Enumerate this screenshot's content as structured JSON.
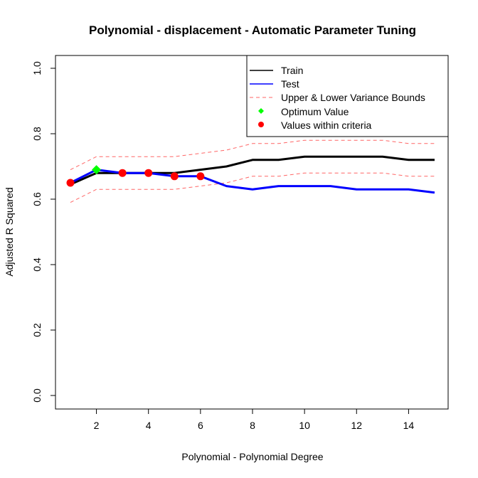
{
  "chart_data": {
    "type": "line",
    "title": "Polynomial - displacement - Automatic Parameter Tuning",
    "xlabel": "Polynomial - Polynomial Degree",
    "ylabel": "Adjusted R Squared",
    "xlim": [
      1,
      15
    ],
    "ylim": [
      0,
      1
    ],
    "x_ticks": [
      2,
      4,
      6,
      8,
      10,
      12,
      14
    ],
    "y_ticks": [
      0.0,
      0.2,
      0.4,
      0.6,
      0.8,
      1.0
    ],
    "y_tick_labels": [
      "0.0",
      "0.2",
      "0.4",
      "0.6",
      "0.8",
      "1.0"
    ],
    "x": [
      1,
      2,
      3,
      4,
      5,
      6,
      7,
      8,
      9,
      10,
      11,
      12,
      13,
      14,
      15
    ],
    "series": [
      {
        "name": "Train",
        "color": "#000000",
        "style": "solid",
        "values": [
          0.645,
          0.68,
          0.68,
          0.68,
          0.68,
          0.69,
          0.7,
          0.72,
          0.72,
          0.73,
          0.73,
          0.73,
          0.73,
          0.72,
          0.72
        ]
      },
      {
        "name": "Test",
        "color": "#0000ff",
        "style": "solid",
        "values": [
          0.65,
          0.69,
          0.68,
          0.68,
          0.67,
          0.67,
          0.64,
          0.63,
          0.64,
          0.64,
          0.64,
          0.63,
          0.63,
          0.63,
          0.62
        ]
      },
      {
        "name": "Upper & Lower Variance Bounds",
        "color": "#ff6666",
        "style": "dashed",
        "upper": [
          0.69,
          0.73,
          0.73,
          0.73,
          0.73,
          0.74,
          0.75,
          0.77,
          0.77,
          0.78,
          0.78,
          0.78,
          0.78,
          0.77,
          0.77
        ],
        "lower": [
          0.59,
          0.63,
          0.63,
          0.63,
          0.63,
          0.64,
          0.65,
          0.67,
          0.67,
          0.68,
          0.68,
          0.68,
          0.68,
          0.67,
          0.67
        ]
      }
    ],
    "optimum": {
      "name": "Optimum Value",
      "color": "#00ff00",
      "x": 2,
      "y": 0.69
    },
    "within_criteria": {
      "name": "Values within criteria",
      "color": "#ff0000",
      "points": [
        {
          "x": 1,
          "y": 0.65
        },
        {
          "x": 3,
          "y": 0.68
        },
        {
          "x": 4,
          "y": 0.68
        },
        {
          "x": 5,
          "y": 0.67
        },
        {
          "x": 6,
          "y": 0.67
        }
      ]
    },
    "legend": {
      "position": "top-right",
      "entries": [
        "Train",
        "Test",
        "Upper & Lower Variance Bounds",
        "Optimum Value",
        "Values within criteria"
      ]
    },
    "grid": false
  }
}
